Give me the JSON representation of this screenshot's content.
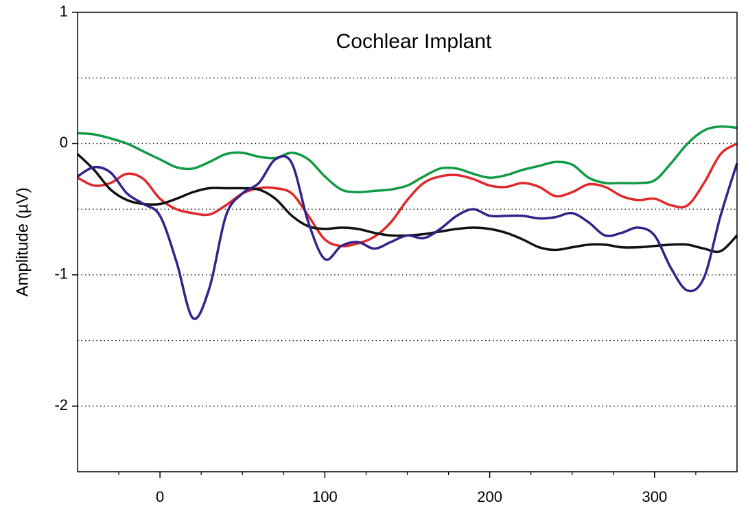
{
  "chart_data": {
    "type": "line",
    "title": "Cochlear Implant",
    "y_label": "Amplitude (µV)",
    "x": [
      -50,
      -40,
      -30,
      -20,
      -10,
      0,
      10,
      20,
      30,
      40,
      50,
      60,
      70,
      80,
      90,
      100,
      110,
      120,
      130,
      140,
      150,
      160,
      170,
      180,
      190,
      200,
      210,
      220,
      230,
      240,
      250,
      260,
      270,
      280,
      290,
      300,
      310,
      320,
      330,
      340,
      350
    ],
    "series": [
      {
        "name": "green",
        "color": "#119a45",
        "values": [
          0.08,
          0.07,
          0.04,
          0.0,
          -0.06,
          -0.12,
          -0.18,
          -0.19,
          -0.14,
          -0.08,
          -0.07,
          -0.1,
          -0.11,
          -0.07,
          -0.12,
          -0.25,
          -0.35,
          -0.37,
          -0.36,
          -0.35,
          -0.32,
          -0.25,
          -0.19,
          -0.19,
          -0.23,
          -0.26,
          -0.24,
          -0.2,
          -0.17,
          -0.14,
          -0.16,
          -0.26,
          -0.3,
          -0.3,
          -0.3,
          -0.28,
          -0.15,
          0.0,
          0.1,
          0.13,
          0.12
        ]
      },
      {
        "name": "red",
        "color": "#e0282b",
        "values": [
          -0.26,
          -0.32,
          -0.3,
          -0.23,
          -0.27,
          -0.42,
          -0.5,
          -0.53,
          -0.54,
          -0.47,
          -0.38,
          -0.34,
          -0.34,
          -0.38,
          -0.55,
          -0.73,
          -0.78,
          -0.76,
          -0.71,
          -0.6,
          -0.43,
          -0.3,
          -0.25,
          -0.24,
          -0.27,
          -0.32,
          -0.33,
          -0.3,
          -0.33,
          -0.4,
          -0.37,
          -0.31,
          -0.33,
          -0.4,
          -0.43,
          -0.42,
          -0.47,
          -0.47,
          -0.3,
          -0.08,
          0.0
        ]
      },
      {
        "name": "black",
        "color": "#111111",
        "values": [
          -0.08,
          -0.2,
          -0.35,
          -0.43,
          -0.46,
          -0.46,
          -0.42,
          -0.37,
          -0.34,
          -0.34,
          -0.34,
          -0.35,
          -0.42,
          -0.55,
          -0.63,
          -0.65,
          -0.64,
          -0.65,
          -0.68,
          -0.7,
          -0.7,
          -0.69,
          -0.67,
          -0.65,
          -0.64,
          -0.65,
          -0.68,
          -0.73,
          -0.79,
          -0.81,
          -0.79,
          -0.77,
          -0.77,
          -0.79,
          -0.79,
          -0.78,
          -0.77,
          -0.77,
          -0.8,
          -0.82,
          -0.7
        ]
      },
      {
        "name": "purple",
        "color": "#35218a",
        "values": [
          -0.25,
          -0.18,
          -0.22,
          -0.38,
          -0.46,
          -0.55,
          -0.9,
          -1.33,
          -1.1,
          -0.55,
          -0.38,
          -0.3,
          -0.12,
          -0.15,
          -0.6,
          -0.88,
          -0.78,
          -0.75,
          -0.8,
          -0.75,
          -0.7,
          -0.72,
          -0.65,
          -0.55,
          -0.5,
          -0.55,
          -0.55,
          -0.55,
          -0.57,
          -0.56,
          -0.53,
          -0.6,
          -0.7,
          -0.68,
          -0.64,
          -0.7,
          -0.95,
          -1.12,
          -1.02,
          -0.55,
          -0.15
        ]
      }
    ],
    "xlim": [
      -50,
      350
    ],
    "xticks": [
      0,
      100,
      200,
      300
    ],
    "xticks_minor": [
      -25,
      25,
      50,
      75,
      125,
      150,
      175,
      225,
      250,
      275,
      325
    ],
    "ylim": [
      -2.5,
      1
    ],
    "yticks": [
      -2,
      -1,
      0,
      1
    ],
    "ygrid": [
      0.5,
      0,
      -0.5,
      -1,
      -1.5,
      -2
    ]
  }
}
